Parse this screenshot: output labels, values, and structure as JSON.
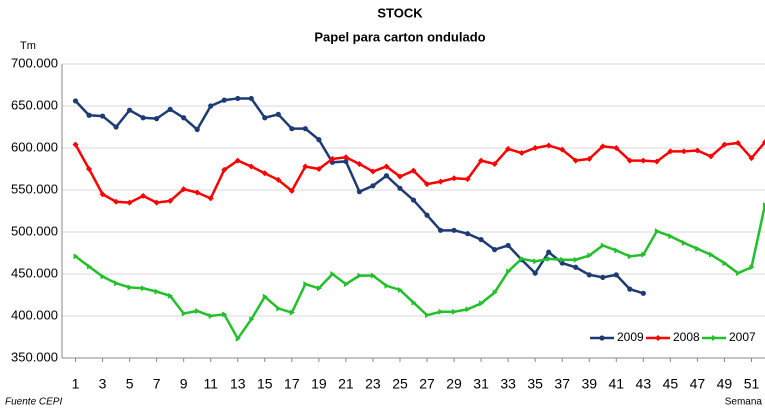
{
  "chart_data": {
    "type": "line",
    "title": "STOCK",
    "subtitle": "Papel para carton ondulado",
    "y_label": "Tm",
    "x_label": "Semana",
    "source": "Fuente CEPI",
    "x": [
      1,
      2,
      3,
      4,
      5,
      6,
      7,
      8,
      9,
      10,
      11,
      12,
      13,
      14,
      15,
      16,
      17,
      18,
      19,
      20,
      21,
      22,
      23,
      24,
      25,
      26,
      27,
      28,
      29,
      30,
      31,
      32,
      33,
      34,
      35,
      36,
      37,
      38,
      39,
      40,
      41,
      42,
      43,
      44,
      45,
      46,
      47,
      48,
      49,
      50,
      51,
      52
    ],
    "xlim": [
      0,
      52
    ],
    "xticks": [
      1,
      3,
      5,
      7,
      9,
      11,
      13,
      15,
      17,
      19,
      21,
      23,
      25,
      27,
      29,
      31,
      33,
      35,
      37,
      39,
      41,
      43,
      45,
      47,
      49,
      51
    ],
    "ylim": [
      350000,
      700000
    ],
    "yticks": [
      {
        "value": 350000,
        "label": "350.000"
      },
      {
        "value": 400000,
        "label": "400.000"
      },
      {
        "value": 450000,
        "label": "450.000"
      },
      {
        "value": 500000,
        "label": "500.000"
      },
      {
        "value": 550000,
        "label": "550.000"
      },
      {
        "value": 600000,
        "label": "600.000"
      },
      {
        "value": 650000,
        "label": "650.000"
      },
      {
        "value": 700000,
        "label": "700.000"
      }
    ],
    "grid": true,
    "legend": "lower-right",
    "series": [
      {
        "name": "2009",
        "color": "#1f3b73",
        "marker": "circle",
        "values": [
          656000,
          639000,
          638000,
          625000,
          645000,
          636000,
          635000,
          646000,
          636000,
          622000,
          650000,
          657000,
          659000,
          659000,
          636000,
          640000,
          623000,
          623000,
          610000,
          583000,
          584000,
          548000,
          555000,
          567000,
          552000,
          538000,
          520000,
          502000,
          502000,
          498000,
          491000,
          479000,
          484000,
          467000,
          451000,
          476000,
          463000,
          458000,
          449000,
          446000,
          449000,
          432000,
          427000,
          null,
          null,
          null,
          null,
          null,
          null,
          null,
          null,
          null
        ]
      },
      {
        "name": "2008",
        "color": "#ff0000",
        "marker": "diamond",
        "values": [
          604000,
          575000,
          545000,
          536000,
          535000,
          543000,
          535000,
          537000,
          551000,
          547000,
          540000,
          574000,
          585000,
          578000,
          570000,
          562000,
          549000,
          578000,
          575000,
          587000,
          589000,
          581000,
          572000,
          578000,
          566000,
          573000,
          557000,
          560000,
          564000,
          563000,
          585000,
          581000,
          599000,
          594000,
          600000,
          603000,
          598000,
          585000,
          587000,
          602000,
          600000,
          585000,
          585000,
          584000,
          596000,
          596000,
          597000,
          590000,
          604000,
          606000,
          588000,
          607000
        ]
      },
      {
        "name": "2007",
        "color": "#22c02a",
        "marker": "triangle",
        "values": [
          471000,
          459000,
          447000,
          439000,
          434000,
          433000,
          429000,
          424000,
          403000,
          406000,
          400000,
          402000,
          373000,
          396000,
          423000,
          409000,
          404000,
          438000,
          433000,
          450000,
          438000,
          448000,
          448000,
          436000,
          431000,
          416000,
          401000,
          405000,
          405000,
          408000,
          415000,
          428000,
          453000,
          468000,
          465000,
          468000,
          467000,
          467000,
          472000,
          484000,
          478000,
          471000,
          473000,
          501000,
          495000,
          487000,
          480000,
          473000,
          463000,
          451000,
          458000,
          532000
        ]
      }
    ]
  }
}
